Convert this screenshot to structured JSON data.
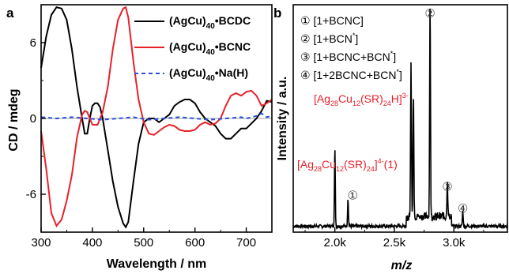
{
  "chart_data": [
    {
      "panel": "a",
      "type": "line",
      "xlabel": "Wavelength / nm",
      "ylabel": "CD / mdeg",
      "xlim": [
        300,
        750
      ],
      "ylim": [
        -9,
        9
      ],
      "xticks": [
        300,
        400,
        500,
        600,
        700
      ],
      "yticks": [
        -6,
        0,
        6
      ],
      "tick_labels_x": [
        "300",
        "400",
        "500",
        "600",
        "700"
      ],
      "tick_labels_y": [
        "-6",
        "0",
        "6"
      ],
      "legend_position": "top-right",
      "series": [
        {
          "label_main": "(AgCu)",
          "label_sub": "40",
          "label_tail": "•BCDC",
          "color": "#000000",
          "dash": "solid",
          "points": [
            [
              300,
              4
            ],
            [
              310,
              6.5
            ],
            [
              320,
              8.2
            ],
            [
              330,
              8.8
            ],
            [
              340,
              8.7
            ],
            [
              350,
              7.8
            ],
            [
              360,
              5.5
            ],
            [
              370,
              2.5
            ],
            [
              380,
              0
            ],
            [
              385,
              -1.2
            ],
            [
              390,
              -1.2
            ],
            [
              395,
              0
            ],
            [
              400,
              1
            ],
            [
              405,
              1.2
            ],
            [
              410,
              1.2
            ],
            [
              415,
              0.9
            ],
            [
              420,
              0
            ],
            [
              430,
              -2.5
            ],
            [
              440,
              -5
            ],
            [
              450,
              -7
            ],
            [
              460,
              -8.3
            ],
            [
              465,
              -8.6
            ],
            [
              470,
              -8.2
            ],
            [
              480,
              -5
            ],
            [
              490,
              -2
            ],
            [
              500,
              -0.3
            ],
            [
              510,
              0
            ],
            [
              520,
              0
            ],
            [
              530,
              -0.3
            ],
            [
              540,
              0
            ],
            [
              550,
              0.3
            ],
            [
              560,
              1
            ],
            [
              570,
              1.3
            ],
            [
              580,
              1.5
            ],
            [
              590,
              1.5
            ],
            [
              600,
              1.2
            ],
            [
              610,
              0.5
            ],
            [
              620,
              0
            ],
            [
              630,
              -0.3
            ],
            [
              640,
              -0.6
            ],
            [
              650,
              -1.2
            ],
            [
              660,
              -1.6
            ],
            [
              670,
              -1.6
            ],
            [
              680,
              -1.2
            ],
            [
              690,
              -0.8
            ],
            [
              700,
              -0.8
            ],
            [
              710,
              -0.4
            ],
            [
              720,
              0
            ],
            [
              730,
              0.6
            ],
            [
              740,
              1.4
            ],
            [
              750,
              1.3
            ]
          ]
        },
        {
          "label_main": "(AgCu)",
          "label_sub": "40",
          "label_tail": "•BCNC",
          "color": "#e8202a",
          "dash": "solid",
          "points": [
            [
              300,
              -1
            ],
            [
              310,
              -4
            ],
            [
              320,
              -7.5
            ],
            [
              330,
              -8.5
            ],
            [
              340,
              -8
            ],
            [
              350,
              -6.5
            ],
            [
              360,
              -4.5
            ],
            [
              370,
              -1.5
            ],
            [
              380,
              0.3
            ],
            [
              385,
              0.6
            ],
            [
              390,
              0.5
            ],
            [
              400,
              -0.5
            ],
            [
              410,
              -0.5
            ],
            [
              420,
              0.5
            ],
            [
              430,
              2.5
            ],
            [
              440,
              5.5
            ],
            [
              450,
              7.8
            ],
            [
              460,
              8.7
            ],
            [
              465,
              8.8
            ],
            [
              470,
              8
            ],
            [
              480,
              4.5
            ],
            [
              490,
              1.5
            ],
            [
              500,
              -0.3
            ],
            [
              510,
              -1.2
            ],
            [
              520,
              -1.3
            ],
            [
              530,
              -1
            ],
            [
              540,
              -0.7
            ],
            [
              550,
              -0.5
            ],
            [
              560,
              -0.6
            ],
            [
              570,
              -0.9
            ],
            [
              580,
              -1
            ],
            [
              590,
              -1
            ],
            [
              600,
              -0.9
            ],
            [
              610,
              -0.5
            ],
            [
              620,
              -0.3
            ],
            [
              630,
              -0.5
            ],
            [
              640,
              -0.4
            ],
            [
              650,
              0
            ],
            [
              660,
              1
            ],
            [
              670,
              1.8
            ],
            [
              680,
              2
            ],
            [
              690,
              1.8
            ],
            [
              700,
              2.1
            ],
            [
              710,
              2.2
            ],
            [
              720,
              1.8
            ],
            [
              730,
              1
            ],
            [
              740,
              1.2
            ],
            [
              750,
              1.5
            ]
          ]
        },
        {
          "label_main": "(AgCu)",
          "label_sub": "40",
          "label_tail": "•Na(H)",
          "color": "#2b4fd8",
          "dash": "dashed",
          "points": [
            [
              300,
              0.1
            ],
            [
              330,
              0
            ],
            [
              360,
              0.1
            ],
            [
              390,
              0
            ],
            [
              420,
              -0.1
            ],
            [
              450,
              0
            ],
            [
              480,
              0.1
            ],
            [
              510,
              -0.1
            ],
            [
              540,
              0
            ],
            [
              570,
              0.1
            ],
            [
              600,
              0
            ],
            [
              630,
              -0.1
            ],
            [
              660,
              0
            ],
            [
              690,
              0.1
            ],
            [
              700,
              0
            ],
            [
              720,
              0.2
            ],
            [
              730,
              0.4
            ],
            [
              740,
              0.1
            ],
            [
              750,
              0.2
            ]
          ]
        }
      ]
    },
    {
      "panel": "b",
      "type": "line",
      "xlabel": "m/z",
      "ylabel": "Intensity / a.u.",
      "xlim": [
        1650,
        3450
      ],
      "ylim": [
        0,
        1.05
      ],
      "xticks": [
        2000,
        2500,
        3000
      ],
      "tick_labels_x": [
        "2.0k",
        "2.5k",
        "3.0k"
      ],
      "color": "#000000",
      "legend_entries": [
        {
          "marker": "①",
          "text": "[1+BCNC]"
        },
        {
          "marker": "②",
          "text": "[1+BCN",
          "sup": "*",
          "tail": "]"
        },
        {
          "marker": "③",
          "text": "[1+BCNC+BCN",
          "sup": "*",
          "tail": "]"
        },
        {
          "marker": "④",
          "text": "[1+2BCNC+BCN",
          "sup": "*",
          "tail": "]"
        }
      ],
      "species_labels": [
        {
          "pre": "[Ag",
          "s1": "28",
          "mid": "Cu",
          "s2": "12",
          "mid2": "(SR)",
          "s3": "24",
          "tail": "H]",
          "sup": "3-"
        },
        {
          "pre": "[Ag",
          "s1": "28",
          "mid": "Cu",
          "s2": "12",
          "mid2": "(SR)",
          "s3": "24",
          "tail": "]",
          "sup": "4-",
          "after": "(1)"
        }
      ],
      "peak_markers": [
        {
          "marker": "①",
          "x": 2110
        },
        {
          "marker": "②",
          "x": 2800
        },
        {
          "marker": "③",
          "x": 2945
        },
        {
          "marker": "④",
          "x": 3075
        }
      ],
      "peaks": [
        {
          "x": 2000,
          "y": 0.36
        },
        {
          "x": 2110,
          "y": 0.13
        },
        {
          "x": 2640,
          "y": 0.72
        },
        {
          "x": 2660,
          "y": 0.58
        },
        {
          "x": 2800,
          "y": 1.0
        },
        {
          "x": 2945,
          "y": 0.17
        },
        {
          "x": 3075,
          "y": 0.07
        }
      ],
      "baseline": 0.02
    }
  ],
  "panel_letters": [
    "a",
    "b"
  ]
}
